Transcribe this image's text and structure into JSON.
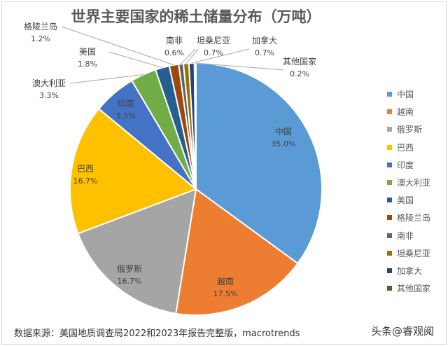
{
  "chart_data": {
    "type": "pie",
    "title": "世界主要国家的稀土储量分布（万吨）",
    "start_angle": "12 o'clock, clockwise",
    "categories": [
      "中国",
      "越南",
      "俄罗斯",
      "巴西",
      "印度",
      "澳大利亚",
      "美国",
      "格陵兰岛",
      "南非",
      "坦桑尼亚",
      "加拿大",
      "其他国家"
    ],
    "values": [
      35.0,
      17.5,
      16.7,
      16.7,
      5.5,
      3.3,
      1.8,
      1.2,
      0.6,
      0.7,
      0.7,
      0.2
    ],
    "labels": [
      "35.0%",
      "17.5%",
      "16.7%",
      "16.7%",
      "5.5%",
      "3.3%",
      "1.8%",
      "1.2%",
      "0.6%",
      "0.7%",
      "0.7%",
      "0.2%"
    ],
    "colors": [
      "#5B9BD5",
      "#ED7D31",
      "#A5A5A5",
      "#FFC000",
      "#4472C4",
      "#70AD47",
      "#255E91",
      "#9E480E",
      "#636363",
      "#997300",
      "#264478",
      "#43682B"
    ],
    "legend_placement": "right"
  },
  "source": "数据来源：美国地质调查局2022和2023年报告完整版，macrotrends",
  "watermark": "头条@睿观阅"
}
